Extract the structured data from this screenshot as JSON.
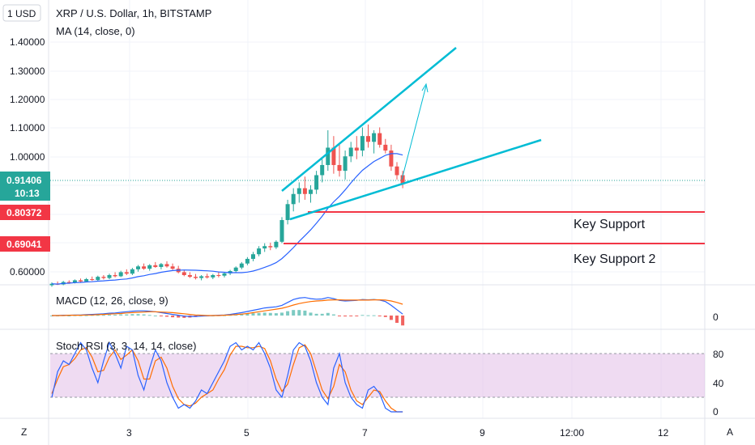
{
  "header": {
    "currency_button": "1 USD",
    "symbol_title": "XRP / U.S. Dollar, 1h, BITSTAMP",
    "ma_label": "MA (14, close, 0)"
  },
  "price_scale": {
    "ticks": [
      "1.40000",
      "1.30000",
      "1.20000",
      "1.10000",
      "1.00000",
      "0.60000"
    ],
    "current_price": "0.91406",
    "countdown": "10:13",
    "support_price_1": "0.80372",
    "support_price_2": "0.69041"
  },
  "annotations": {
    "support_1": "Key Support",
    "support_2": "Key Support 2"
  },
  "macd": {
    "label": "MACD (12, 26, close, 9)",
    "zero_tick": "0"
  },
  "stoch": {
    "label": "Stoch RSI (3, 3, 14, 14, close)",
    "ticks": [
      "80",
      "40",
      "0"
    ]
  },
  "time_axis": {
    "ticks": [
      "3",
      "5",
      "7",
      "9",
      "12:00",
      "12"
    ]
  },
  "corner": {
    "left": "Z",
    "right": "A"
  },
  "colors": {
    "up": "#26a69a",
    "down": "#ef5350",
    "ma": "#2962ff",
    "trendline": "#00bcd4",
    "support": "#f23645",
    "macd": "#2962ff",
    "signal": "#ff6d00",
    "stoch_k": "#2962ff",
    "stoch_d": "#ff6d00",
    "stoch_band": "#e1bee7",
    "price_badge": "#26a69a"
  },
  "chart_data": {
    "type": "candlestick",
    "title": "XRP / U.S. Dollar, 1h, BITSTAMP",
    "price_range": [
      0.56,
      1.48
    ],
    "overlays": [
      "MA (14, close, 0)"
    ],
    "candles": [
      [
        0.565,
        0.575,
        0.56,
        0.57
      ],
      [
        0.57,
        0.578,
        0.566,
        0.568
      ],
      [
        0.568,
        0.58,
        0.565,
        0.576
      ],
      [
        0.576,
        0.582,
        0.57,
        0.574
      ],
      [
        0.574,
        0.585,
        0.571,
        0.582
      ],
      [
        0.582,
        0.588,
        0.575,
        0.578
      ],
      [
        0.578,
        0.59,
        0.575,
        0.586
      ],
      [
        0.586,
        0.595,
        0.58,
        0.583
      ],
      [
        0.583,
        0.598,
        0.58,
        0.594
      ],
      [
        0.594,
        0.6,
        0.585,
        0.59
      ],
      [
        0.59,
        0.605,
        0.586,
        0.6
      ],
      [
        0.6,
        0.61,
        0.592,
        0.596
      ],
      [
        0.596,
        0.615,
        0.593,
        0.61
      ],
      [
        0.61,
        0.62,
        0.6,
        0.605
      ],
      [
        0.605,
        0.625,
        0.6,
        0.62
      ],
      [
        0.62,
        0.635,
        0.612,
        0.63
      ],
      [
        0.63,
        0.64,
        0.618,
        0.622
      ],
      [
        0.622,
        0.638,
        0.615,
        0.634
      ],
      [
        0.634,
        0.645,
        0.625,
        0.628
      ],
      [
        0.628,
        0.642,
        0.62,
        0.638
      ],
      [
        0.638,
        0.648,
        0.626,
        0.63
      ],
      [
        0.63,
        0.64,
        0.618,
        0.622
      ],
      [
        0.622,
        0.632,
        0.606,
        0.61
      ],
      [
        0.61,
        0.618,
        0.596,
        0.6
      ],
      [
        0.6,
        0.61,
        0.59,
        0.594
      ],
      [
        0.594,
        0.604,
        0.585,
        0.59
      ],
      [
        0.59,
        0.6,
        0.582,
        0.596
      ],
      [
        0.596,
        0.605,
        0.588,
        0.592
      ],
      [
        0.592,
        0.604,
        0.586,
        0.6
      ],
      [
        0.6,
        0.61,
        0.592,
        0.598
      ],
      [
        0.598,
        0.61,
        0.592,
        0.606
      ],
      [
        0.606,
        0.618,
        0.6,
        0.614
      ],
      [
        0.614,
        0.63,
        0.608,
        0.626
      ],
      [
        0.626,
        0.645,
        0.62,
        0.64
      ],
      [
        0.64,
        0.662,
        0.634,
        0.656
      ],
      [
        0.656,
        0.68,
        0.648,
        0.672
      ],
      [
        0.672,
        0.7,
        0.665,
        0.692
      ],
      [
        0.692,
        0.71,
        0.68,
        0.7
      ],
      [
        0.7,
        0.712,
        0.686,
        0.696
      ],
      [
        0.696,
        0.72,
        0.69,
        0.715
      ],
      [
        0.715,
        0.8,
        0.71,
        0.79
      ],
      [
        0.79,
        0.86,
        0.775,
        0.845
      ],
      [
        0.845,
        0.9,
        0.82,
        0.88
      ],
      [
        0.88,
        0.92,
        0.85,
        0.9
      ],
      [
        0.9,
        0.94,
        0.86,
        0.88
      ],
      [
        0.88,
        0.91,
        0.85,
        0.895
      ],
      [
        0.895,
        0.96,
        0.88,
        0.945
      ],
      [
        0.945,
        1.0,
        0.92,
        0.98
      ],
      [
        0.98,
        1.1,
        0.96,
        1.04
      ],
      [
        1.04,
        1.08,
        0.95,
        0.98
      ],
      [
        0.98,
        1.05,
        0.94,
        0.96
      ],
      [
        0.96,
        1.03,
        0.93,
        1.01
      ],
      [
        1.01,
        1.06,
        0.99,
        1.04
      ],
      [
        1.04,
        1.08,
        1.0,
        1.03
      ],
      [
        1.03,
        1.11,
        1.01,
        1.08
      ],
      [
        1.08,
        1.12,
        1.04,
        1.06
      ],
      [
        1.06,
        1.1,
        1.02,
        1.09
      ],
      [
        1.09,
        1.11,
        1.04,
        1.05
      ],
      [
        1.05,
        1.07,
        1.02,
        1.03
      ],
      [
        1.03,
        1.05,
        0.96,
        0.975
      ],
      [
        0.975,
        0.99,
        0.93,
        0.945
      ],
      [
        0.945,
        0.96,
        0.9,
        0.914
      ]
    ],
    "support_levels": [
      0.80372,
      0.69041
    ],
    "current_price": 0.91406,
    "subcharts": [
      {
        "name": "MACD (12, 26, close, 9)",
        "range": [
          -0.06,
          0.08
        ],
        "zero_label": "0",
        "macd": [
          0.0,
          0.0,
          0.001,
          0.001,
          0.002,
          0.002,
          0.003,
          0.004,
          0.005,
          0.006,
          0.008,
          0.009,
          0.011,
          0.013,
          0.015,
          0.016,
          0.016,
          0.015,
          0.013,
          0.01,
          0.007,
          0.004,
          0.001,
          -0.002,
          -0.003,
          -0.003,
          -0.002,
          -0.001,
          0.0,
          0.001,
          0.002,
          0.004,
          0.007,
          0.01,
          0.014,
          0.018,
          0.022,
          0.026,
          0.028,
          0.03,
          0.035,
          0.045,
          0.055,
          0.06,
          0.062,
          0.058,
          0.056,
          0.057,
          0.062,
          0.058,
          0.052,
          0.05,
          0.051,
          0.052,
          0.055,
          0.054,
          0.055,
          0.053,
          0.048,
          0.035,
          0.02,
          0.005
        ],
        "signal": [
          0.0,
          0.0,
          0.0,
          0.001,
          0.001,
          0.001,
          0.002,
          0.002,
          0.003,
          0.004,
          0.005,
          0.006,
          0.007,
          0.009,
          0.01,
          0.011,
          0.012,
          0.013,
          0.013,
          0.012,
          0.011,
          0.01,
          0.008,
          0.006,
          0.004,
          0.002,
          0.001,
          0.0,
          0.0,
          0.0,
          0.001,
          0.002,
          0.003,
          0.005,
          0.007,
          0.01,
          0.013,
          0.016,
          0.019,
          0.022,
          0.025,
          0.03,
          0.036,
          0.041,
          0.045,
          0.048,
          0.05,
          0.051,
          0.053,
          0.054,
          0.054,
          0.053,
          0.053,
          0.053,
          0.053,
          0.053,
          0.054,
          0.054,
          0.053,
          0.05,
          0.045,
          0.039
        ]
      },
      {
        "name": "Stoch RSI (3, 3, 14, 14, close)",
        "range": [
          0,
          100
        ],
        "band": [
          20,
          80
        ],
        "ticks": [
          "80",
          "40",
          "0"
        ],
        "k": [
          20,
          55,
          70,
          65,
          80,
          95,
          85,
          60,
          40,
          70,
          95,
          80,
          60,
          90,
          85,
          50,
          30,
          60,
          85,
          70,
          40,
          20,
          5,
          10,
          5,
          15,
          30,
          25,
          40,
          55,
          70,
          90,
          95,
          85,
          90,
          85,
          95,
          80,
          60,
          30,
          20,
          50,
          85,
          95,
          90,
          70,
          40,
          20,
          10,
          60,
          80,
          40,
          20,
          10,
          5,
          30,
          35,
          25,
          5,
          0,
          0,
          0
        ],
        "d": [
          25,
          45,
          62,
          65,
          73,
          85,
          88,
          75,
          55,
          57,
          75,
          85,
          72,
          78,
          85,
          70,
          45,
          45,
          70,
          75,
          60,
          35,
          18,
          10,
          8,
          12,
          20,
          25,
          30,
          45,
          58,
          78,
          90,
          90,
          88,
          88,
          90,
          87,
          70,
          45,
          28,
          38,
          65,
          88,
          92,
          80,
          55,
          30,
          18,
          35,
          65,
          55,
          30,
          15,
          10,
          20,
          30,
          28,
          15,
          5,
          0,
          0
        ]
      }
    ]
  }
}
